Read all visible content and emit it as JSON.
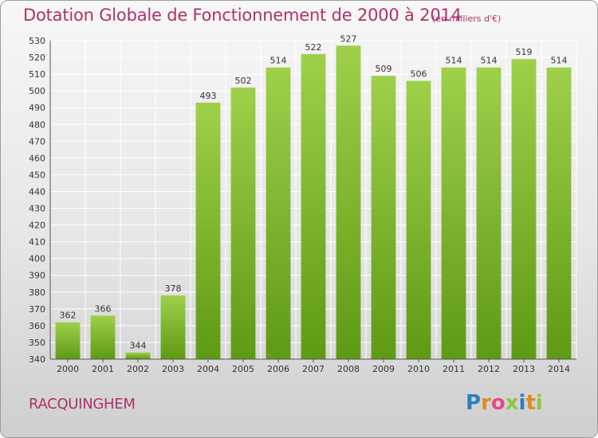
{
  "header": {
    "title": "Dotation Globale de Fonctionnement de 2000 à 2014",
    "subtitle": "(en milliers d'€)"
  },
  "footer": {
    "commune": "RACQUINGHEM",
    "brand": "Proxiti"
  },
  "colors": {
    "bar_top": "#9fd04a",
    "bar_bottom": "#5e9a14",
    "title": "#b0306a"
  },
  "chart_data": {
    "type": "bar",
    "title": "Dotation Globale de Fonctionnement de 2000 à 2014",
    "subtitle": "(en milliers d'€)",
    "xlabel": "",
    "ylabel": "",
    "categories": [
      "2000",
      "2001",
      "2002",
      "2003",
      "2004",
      "2005",
      "2006",
      "2007",
      "2008",
      "2009",
      "2010",
      "2011",
      "2012",
      "2013",
      "2014"
    ],
    "values": [
      362,
      366,
      344,
      378,
      493,
      502,
      514,
      522,
      527,
      509,
      506,
      514,
      514,
      519,
      514
    ],
    "ylim": [
      340,
      530
    ],
    "ytick_step": 10,
    "grid": true,
    "data_labels": true
  }
}
